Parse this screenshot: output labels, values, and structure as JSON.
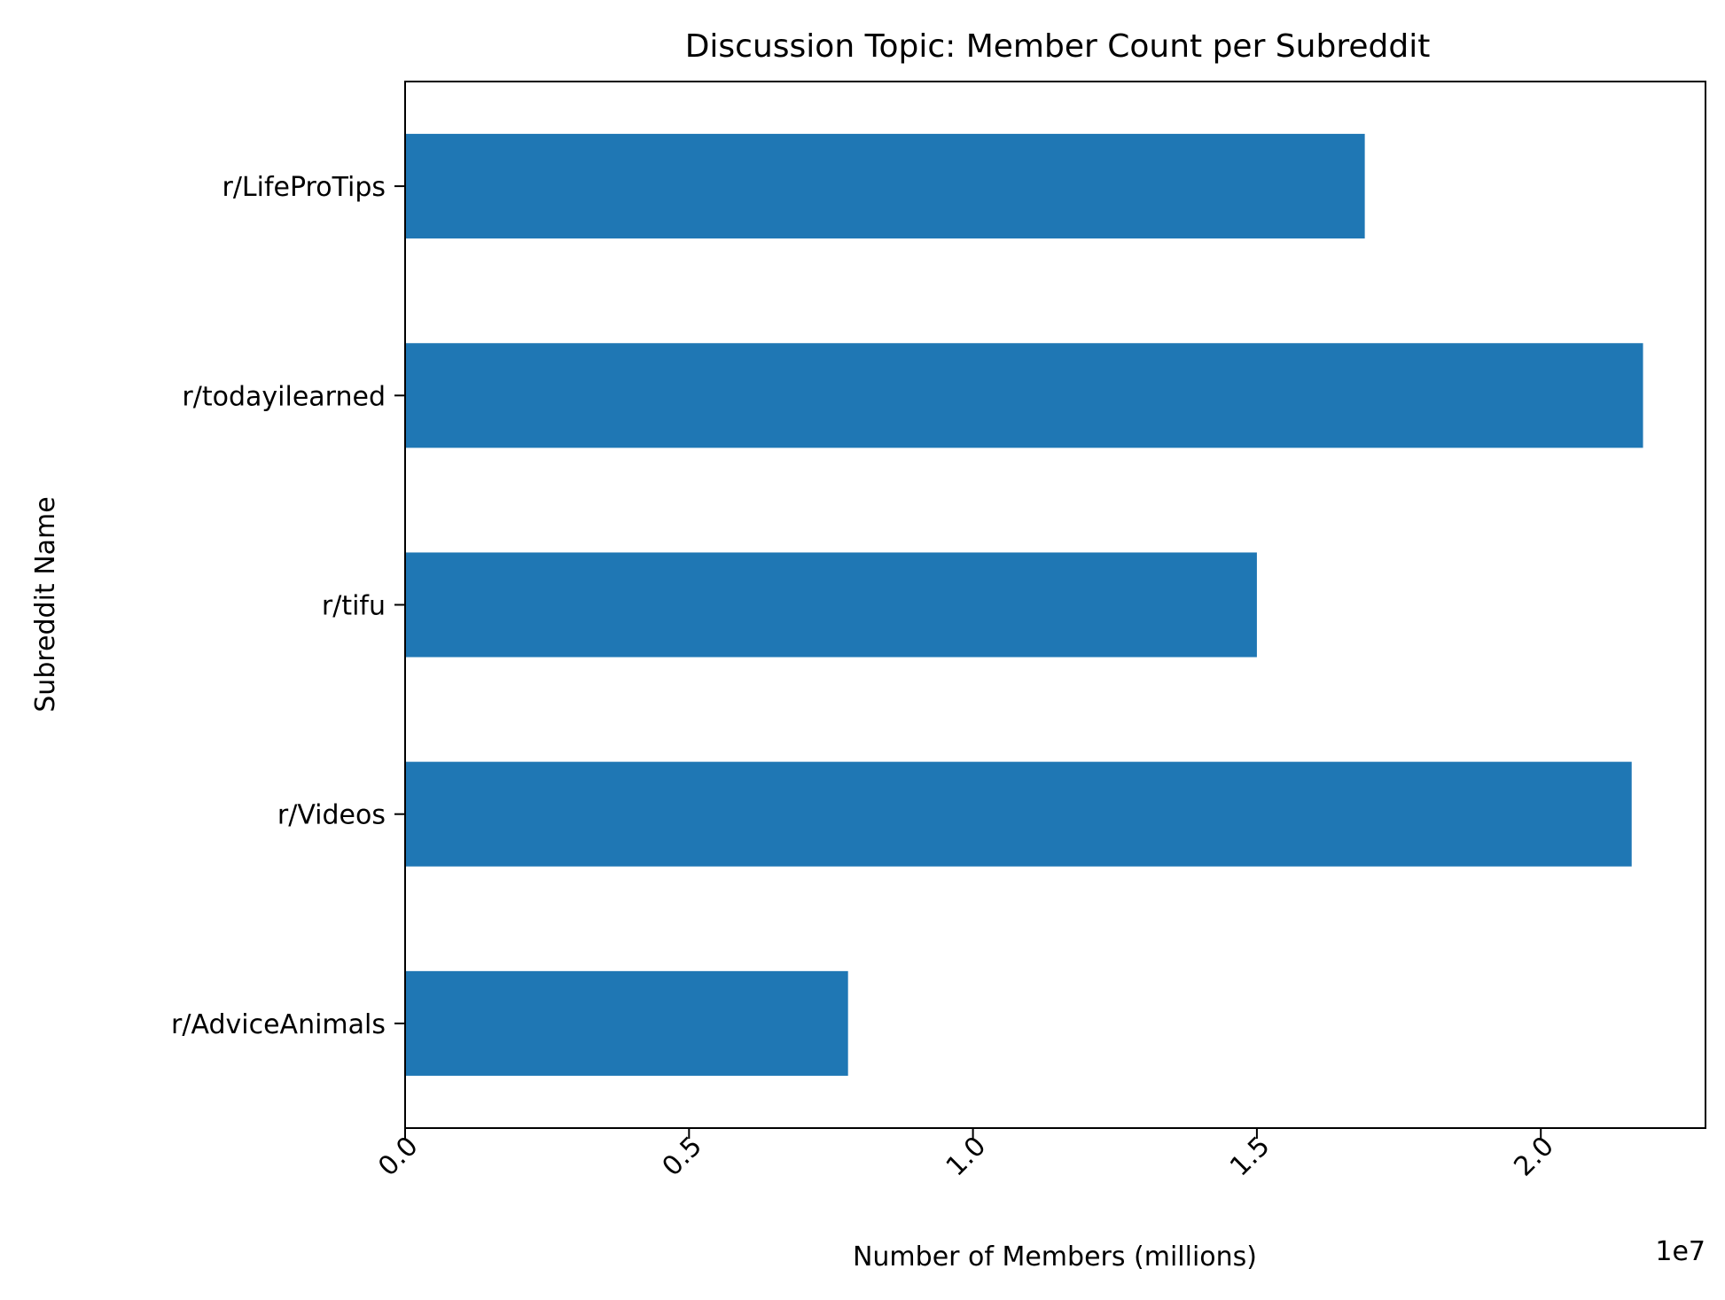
{
  "chart_data": {
    "type": "bar",
    "orientation": "horizontal",
    "title": "Discussion Topic: Member Count per Subreddit",
    "xlabel": "Number of Members (millions)",
    "ylabel": "Subreddit Name",
    "x_offset_label": "1e7",
    "categories": [
      "r/LifeProTips",
      "r/todayilearned",
      "r/tifu",
      "r/Videos",
      "r/AdviceAnimals"
    ],
    "values": [
      16900000,
      21800000,
      15000000,
      21600000,
      7800000
    ],
    "xlim": [
      0,
      22900000
    ],
    "x_ticks": [
      0,
      5000000,
      10000000,
      15000000,
      20000000
    ],
    "x_tick_labels": [
      "0.0",
      "0.5",
      "1.0",
      "1.5",
      "2.0"
    ],
    "bar_color": "#1f77b4",
    "grid": false,
    "legend": "none"
  }
}
